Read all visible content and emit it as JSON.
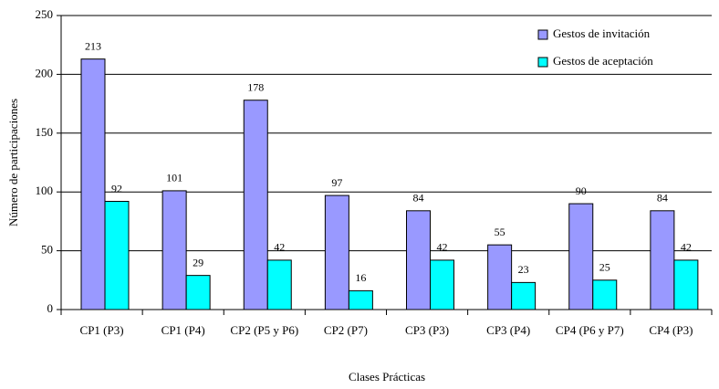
{
  "chart_data": {
    "type": "bar",
    "x_label": "Clases Prácticas",
    "y_label": "Número de participaciones",
    "categories": [
      "CP1 (P3)",
      "CP1 (P4)",
      "CP2 (P5 y P6)",
      "CP2 (P7)",
      "CP3 (P3)",
      "CP3 (P4)",
      "CP4 (P6 y P7)",
      "CP4 (P3)"
    ],
    "series": [
      {
        "name": "Gestos de invitación",
        "color": "#9999ff",
        "values": [
          213,
          101,
          178,
          97,
          84,
          55,
          90,
          84
        ]
      },
      {
        "name": "Gestos de aceptación",
        "color": "#00ffff",
        "values": [
          92,
          29,
          42,
          16,
          42,
          23,
          25,
          42
        ]
      }
    ],
    "ylim": [
      0,
      250
    ],
    "yticks": [
      0,
      50,
      100,
      150,
      200,
      250
    ],
    "grid": true,
    "legend": "top-right"
  }
}
